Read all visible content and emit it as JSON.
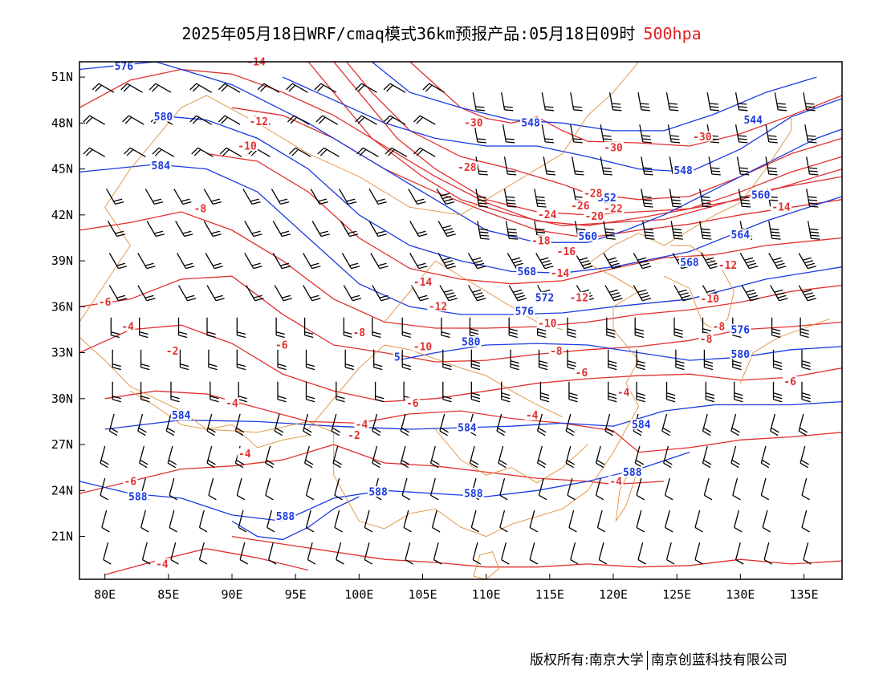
{
  "title": {
    "main": "2025年05月18日WRF/cmaq模式36km预报产品:05月18日09时",
    "level": "500hpa"
  },
  "footer": {
    "copyright": "版权所有:南京大学",
    "company": "南京创蓝科技有限公司"
  },
  "colors": {
    "height_contour": "#1a3ae0",
    "temperature_contour": "#e03030",
    "border": "#e0903a",
    "wind_barb": "#000000",
    "level_text": "#e02020"
  },
  "map": {
    "lon_ticks": [
      "80E",
      "85E",
      "90E",
      "95E",
      "100E",
      "105E",
      "110E",
      "115E",
      "120E",
      "125E",
      "130E",
      "135E"
    ],
    "lat_ticks": [
      "51N",
      "48N",
      "45N",
      "42N",
      "39N",
      "36N",
      "33N",
      "30N",
      "27N",
      "24N",
      "21N"
    ],
    "lon_range": [
      78,
      138
    ],
    "lat_range": [
      18.2,
      52
    ]
  },
  "height_labels": [
    {
      "text": "576",
      "lon": 81.5,
      "lat": 51.6
    },
    {
      "text": "580",
      "lon": 84.6,
      "lat": 48.3
    },
    {
      "text": "584",
      "lon": 84.4,
      "lat": 45.1
    },
    {
      "text": "548",
      "lon": 113.5,
      "lat": 47.9
    },
    {
      "text": "544",
      "lon": 131.0,
      "lat": 48.1
    },
    {
      "text": "548",
      "lon": 125.5,
      "lat": 44.8
    },
    {
      "text": "552",
      "lon": 119.5,
      "lat": 43.0
    },
    {
      "text": "560",
      "lon": 131.6,
      "lat": 43.2
    },
    {
      "text": "560",
      "lon": 118.0,
      "lat": 40.5
    },
    {
      "text": "564",
      "lon": 130.0,
      "lat": 40.6
    },
    {
      "text": "568",
      "lon": 113.2,
      "lat": 38.2
    },
    {
      "text": "568",
      "lon": 126.0,
      "lat": 38.8
    },
    {
      "text": "572",
      "lon": 114.6,
      "lat": 36.5
    },
    {
      "text": "576",
      "lon": 113.0,
      "lat": 35.6
    },
    {
      "text": "576",
      "lon": 130.0,
      "lat": 34.4
    },
    {
      "text": "580",
      "lon": 108.8,
      "lat": 33.6
    },
    {
      "text": "580",
      "lon": 130.0,
      "lat": 32.8
    },
    {
      "text": "5",
      "lon": 103.0,
      "lat": 32.6
    },
    {
      "text": "584",
      "lon": 86.0,
      "lat": 28.8
    },
    {
      "text": "584",
      "lon": 108.5,
      "lat": 28.0
    },
    {
      "text": "584",
      "lon": 122.2,
      "lat": 28.2
    },
    {
      "text": "588",
      "lon": 82.6,
      "lat": 23.5
    },
    {
      "text": "588",
      "lon": 94.2,
      "lat": 22.2
    },
    {
      "text": "588",
      "lon": 101.5,
      "lat": 23.8
    },
    {
      "text": "588",
      "lon": 109.0,
      "lat": 23.7
    },
    {
      "text": "588",
      "lon": 121.5,
      "lat": 25.1
    }
  ],
  "temperature_labels": [
    {
      "text": "-14",
      "lon": 91.9,
      "lat": 51.9
    },
    {
      "text": "-12",
      "lon": 92.1,
      "lat": 48.0
    },
    {
      "text": "-10",
      "lon": 91.2,
      "lat": 46.4
    },
    {
      "text": "-8",
      "lon": 87.5,
      "lat": 42.3
    },
    {
      "text": "-30",
      "lon": 109.0,
      "lat": 47.9
    },
    {
      "text": "-30",
      "lon": 120.0,
      "lat": 46.3
    },
    {
      "text": "-30",
      "lon": 127.0,
      "lat": 47.0
    },
    {
      "text": "-28",
      "lon": 108.5,
      "lat": 45.0
    },
    {
      "text": "-28",
      "lon": 118.4,
      "lat": 43.3
    },
    {
      "text": "-26",
      "lon": 117.4,
      "lat": 42.5
    },
    {
      "text": "-22",
      "lon": 120.0,
      "lat": 42.3
    },
    {
      "text": "-24",
      "lon": 114.8,
      "lat": 41.9
    },
    {
      "text": "-20",
      "lon": 118.5,
      "lat": 41.8
    },
    {
      "text": "-18",
      "lon": 114.3,
      "lat": 40.2
    },
    {
      "text": "-16",
      "lon": 116.3,
      "lat": 39.5
    },
    {
      "text": "-14",
      "lon": 133.2,
      "lat": 42.4
    },
    {
      "text": "-14",
      "lon": 105.0,
      "lat": 37.5
    },
    {
      "text": "-14",
      "lon": 115.8,
      "lat": 38.1
    },
    {
      "text": "-12",
      "lon": 106.2,
      "lat": 35.9
    },
    {
      "text": "-12",
      "lon": 117.3,
      "lat": 36.5
    },
    {
      "text": "-12",
      "lon": 129.0,
      "lat": 38.6
    },
    {
      "text": "-10",
      "lon": 127.6,
      "lat": 36.4
    },
    {
      "text": "-10",
      "lon": 105.0,
      "lat": 33.3
    },
    {
      "text": "-10",
      "lon": 114.8,
      "lat": 34.8
    },
    {
      "text": "-8",
      "lon": 100.0,
      "lat": 34.2
    },
    {
      "text": "-8",
      "lon": 115.5,
      "lat": 33.0
    },
    {
      "text": "-8",
      "lon": 128.3,
      "lat": 34.6
    },
    {
      "text": "-8",
      "lon": 127.3,
      "lat": 33.8
    },
    {
      "text": "-6",
      "lon": 80.0,
      "lat": 36.2
    },
    {
      "text": "-6",
      "lon": 93.9,
      "lat": 33.4
    },
    {
      "text": "-6",
      "lon": 117.5,
      "lat": 31.6
    },
    {
      "text": "-6",
      "lon": 104.2,
      "lat": 29.6
    },
    {
      "text": "-6",
      "lon": 133.9,
      "lat": 31.0
    },
    {
      "text": "-6",
      "lon": 82.0,
      "lat": 24.5
    },
    {
      "text": "-4",
      "lon": 81.8,
      "lat": 34.6
    },
    {
      "text": "-4",
      "lon": 90.0,
      "lat": 29.6
    },
    {
      "text": "-4",
      "lon": 100.2,
      "lat": 28.2
    },
    {
      "text": "-4",
      "lon": 113.6,
      "lat": 28.8
    },
    {
      "text": "-4",
      "lon": 120.8,
      "lat": 30.3
    },
    {
      "text": "-4",
      "lon": 120.2,
      "lat": 24.5
    },
    {
      "text": "-4",
      "lon": 91.0,
      "lat": 26.3
    },
    {
      "text": "-4",
      "lon": 84.5,
      "lat": 19.1
    },
    {
      "text": "-2",
      "lon": 85.3,
      "lat": 33.0
    },
    {
      "text": "-2",
      "lon": 99.6,
      "lat": 27.5
    }
  ]
}
